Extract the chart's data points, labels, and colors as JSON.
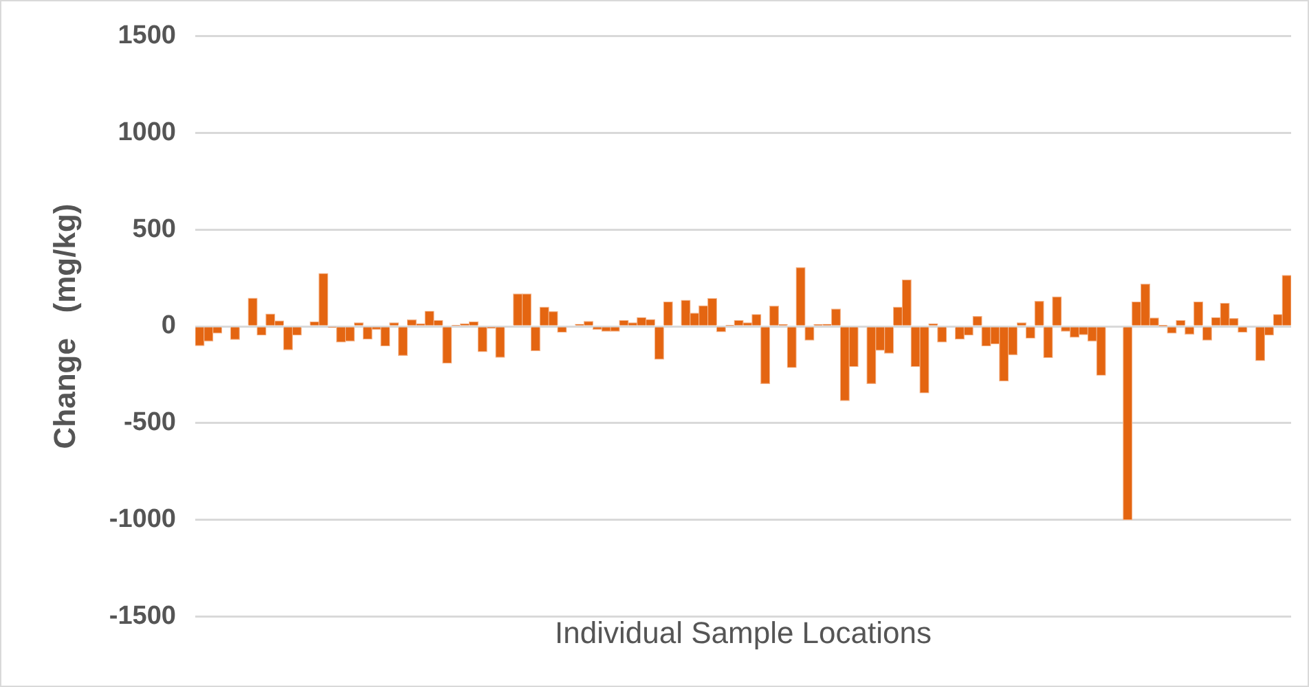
{
  "chart_data": {
    "type": "bar",
    "xlabel": "Individual Sample Locations",
    "ylabel": "Change   (mg/kg)",
    "categories": [
      null,
      null,
      null,
      null,
      null,
      null,
      null,
      null,
      null,
      null,
      null,
      null,
      null,
      null,
      null,
      null,
      null,
      null,
      null,
      null,
      null,
      null,
      null,
      null,
      null,
      null,
      null,
      null,
      null,
      null,
      null,
      null,
      null,
      null,
      null,
      null,
      null,
      null,
      null,
      null,
      null,
      null,
      null,
      null,
      null,
      null,
      null,
      null,
      null,
      null,
      null,
      null,
      null,
      null,
      null,
      null,
      null,
      null,
      null,
      null,
      null,
      null,
      null,
      null,
      null,
      null,
      null,
      null,
      null,
      null,
      null,
      null,
      null,
      null,
      null,
      null,
      null,
      null,
      null,
      null,
      null,
      null,
      null,
      null,
      null,
      null,
      null,
      null,
      null,
      null,
      null,
      null,
      null,
      null,
      null,
      null,
      null,
      null,
      null,
      null,
      null,
      null,
      null,
      null,
      null,
      null,
      null,
      null,
      null,
      null,
      null,
      null,
      null,
      null,
      null,
      null,
      null,
      null,
      null,
      null,
      null,
      null,
      null,
      null
    ],
    "values": [
      -100,
      -76,
      -35,
      0,
      -68,
      0,
      145,
      -45,
      63,
      28,
      -121,
      -45,
      0,
      23,
      273,
      -5,
      -81,
      -76,
      18,
      -66,
      -15,
      -101,
      18,
      -150,
      33,
      13,
      78,
      30,
      -190,
      5,
      13,
      23,
      -131,
      -8,
      -160,
      0,
      167,
      167,
      -126,
      99,
      76,
      -30,
      0,
      10,
      25,
      -15,
      -25,
      -25,
      30,
      18,
      45,
      35,
      -170,
      126,
      0,
      134,
      68,
      106,
      144,
      -28,
      5,
      30,
      18,
      61,
      -296,
      104,
      8,
      -213,
      303,
      -71,
      8,
      10,
      89,
      -384,
      -208,
      0,
      -296,
      -124,
      -139,
      99,
      240,
      -208,
      -344,
      13,
      -81,
      0,
      -66,
      -45,
      51,
      -101,
      -91,
      -283,
      -147,
      18,
      -61,
      129,
      -162,
      152,
      -25,
      -56,
      -43,
      -76,
      -253,
      0,
      0,
      -1000,
      126,
      218,
      43,
      3,
      -35,
      30,
      -40,
      126,
      -71,
      45,
      119,
      40,
      -30,
      0,
      -177,
      -45,
      61,
      263
    ],
    "color": "#e46511",
    "ylim": [
      -1500,
      1500
    ],
    "yticks": [
      -1500,
      -1000,
      -500,
      0,
      500,
      1000,
      1500
    ],
    "grid": "y",
    "legend": false,
    "tick_labels": "y"
  }
}
